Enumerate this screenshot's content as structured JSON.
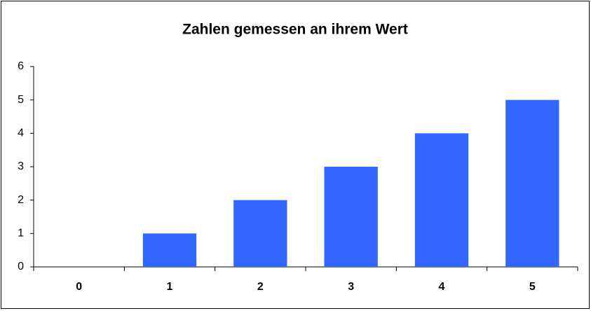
{
  "chart_data": {
    "type": "bar",
    "title": "Zahlen gemessen an ihrem Wert",
    "categories": [
      "0",
      "1",
      "2",
      "3",
      "4",
      "5"
    ],
    "values": [
      0,
      1,
      2,
      3,
      4,
      5
    ],
    "color": "#3366ff",
    "ylim": [
      0,
      6
    ],
    "yticks": [
      0,
      1,
      2,
      3,
      4,
      5,
      6
    ],
    "grid": false
  }
}
